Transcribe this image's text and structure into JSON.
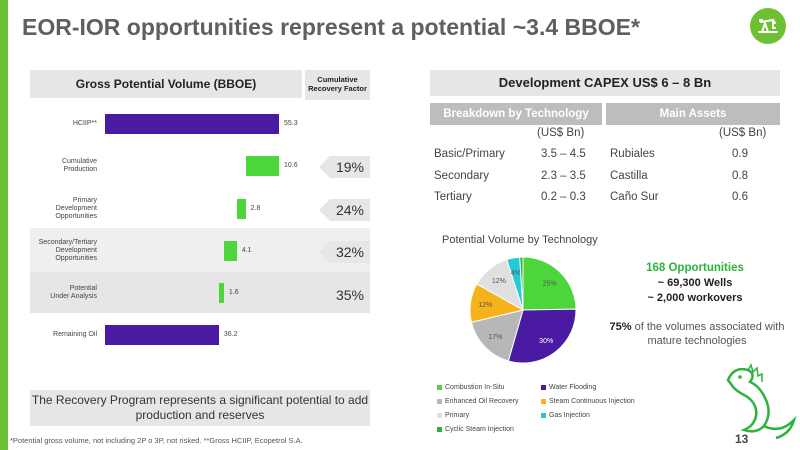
{
  "title": "EOR-IOR opportunities represent a potential ~3.4 BBOE*",
  "colors": {
    "accent": "#6bc133",
    "purple": "#4b1aa3",
    "green": "#4cd63c",
    "header_gray": "#bdbdbd"
  },
  "left_panel": {
    "chart_header": "Gross Potential Volume (BBOE)",
    "crf_header": "Cumulative Recovery Factor",
    "crf_values": [
      "19%",
      "24%",
      "32%",
      "35%"
    ],
    "note": "The Recovery Program represents a significant potential to add production and reserves",
    "footnote": "*Potential gross volume, not including 2P o 3P, not risked. **Gross HCIIP, Ecopetrol S.A."
  },
  "chart_data": [
    {
      "type": "bar",
      "subtype": "waterfall",
      "categories": [
        "HCIIP**",
        "Cumulative Production",
        "Primary Development Opportunities",
        "Secondary/Tertiary Development Opportunities",
        "Potential Under Analysis",
        "Remaining Oil"
      ],
      "category_lines": [
        [
          "HCIIP**"
        ],
        [
          "Cumulative",
          "Production"
        ],
        [
          "Primary",
          "Development",
          "Opportunities"
        ],
        [
          "Secondary/Tertiary",
          "Development",
          "Opportunities"
        ],
        [
          "Potential",
          "Under Analysis"
        ],
        [
          "Remaining Oil"
        ]
      ],
      "values": [
        55.3,
        10.6,
        2.8,
        4.1,
        1.6,
        36.2
      ],
      "value_labels": [
        "55.3",
        "10.6",
        "2.8",
        "4.1",
        "1.6",
        "36.2"
      ],
      "bar_kinds": [
        "total",
        "delta",
        "delta",
        "delta",
        "delta",
        "total"
      ],
      "orientation": "horizontal",
      "title": "Gross Potential Volume (BBOE)",
      "xlim": [
        0,
        55.3
      ]
    },
    {
      "type": "pie",
      "title": "Potential Volume by Technology",
      "labels": [
        "Combustion In-Situ",
        "Water Flooding",
        "Enhanced Oil Recovery",
        "Steam Continuous Injection",
        "Primary",
        "Gas Injection",
        "Cyclic Steam Injection"
      ],
      "values": [
        25,
        30,
        17,
        12,
        12,
        4,
        1
      ],
      "value_labels": [
        "25%",
        "30%",
        "17%",
        "12%",
        "12%",
        "4%",
        "1%"
      ],
      "colors": [
        "#4cd63c",
        "#4b1aa3",
        "#b7b7b7",
        "#f5b21a",
        "#e0e0e0",
        "#23c9d6",
        "#2db33b"
      ],
      "legend_position": "bottom"
    }
  ],
  "right_panel": {
    "capex_header": "Development CAPEX US$ 6 – 8 Bn",
    "tech_table": {
      "header": "Breakdown by Technology",
      "unit": "(US$ Bn)",
      "rows": [
        {
          "label": "Basic/Primary",
          "value": "3.5 – 4.5"
        },
        {
          "label": "Secondary",
          "value": "2.3 – 3.5"
        },
        {
          "label": "Tertiary",
          "value": "0.2 – 0.3"
        }
      ]
    },
    "assets_table": {
      "header": "Main Assets",
      "unit": "(US$ Bn)",
      "rows": [
        {
          "label": "Rubiales",
          "value": "0.9"
        },
        {
          "label": "Castilla",
          "value": "0.8"
        },
        {
          "label": "Caño Sur",
          "value": "0.6"
        }
      ]
    },
    "opportunities": "168 Opportunities",
    "wells": "~ 69,300 Wells",
    "workovers": "~ 2,000 workovers",
    "mature_bold": "75%",
    "mature_text": " of the volumes associated with mature technologies"
  },
  "page_number": "13",
  "icons": [
    "oil-pump-logo-icon",
    "iguana-icon"
  ]
}
